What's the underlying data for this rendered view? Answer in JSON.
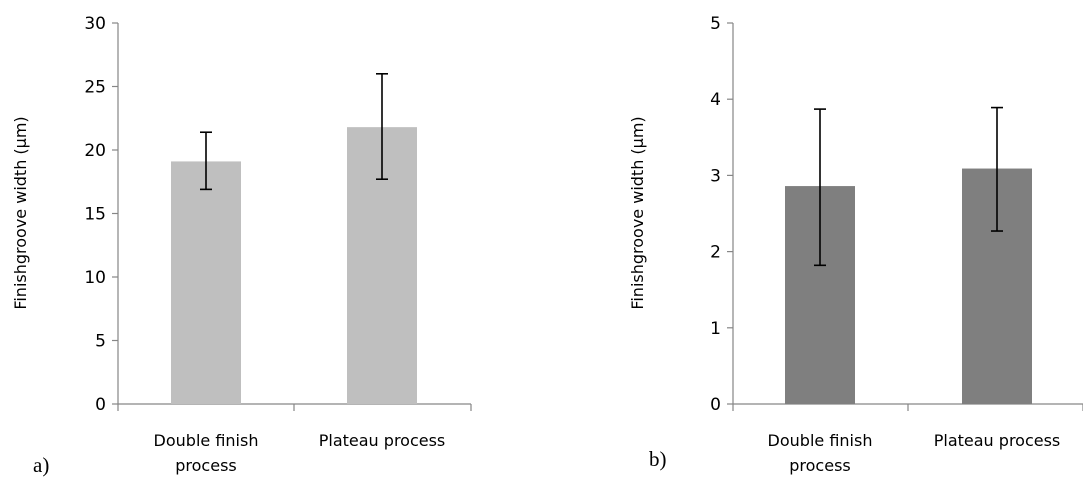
{
  "chart_data": [
    {
      "type": "bar",
      "panel_label": "a)",
      "ylabel": "Finishgroove width (μm)",
      "categories": [
        [
          "Double finish",
          "process"
        ],
        [
          "Plateau process"
        ]
      ],
      "values": [
        19.1,
        21.8
      ],
      "error_low": [
        16.9,
        17.7
      ],
      "error_high": [
        21.4,
        26.0
      ],
      "ylim": [
        0,
        30
      ],
      "yticks": [
        "0",
        "5",
        "10",
        "15",
        "20",
        "25",
        "30"
      ],
      "bar_color": "#bfbfbf",
      "grid": false
    },
    {
      "type": "bar",
      "panel_label": "b)",
      "ylabel": "Finishgroove width (μm)",
      "categories": [
        [
          "Double finish",
          "process"
        ],
        [
          "Plateau process"
        ]
      ],
      "values": [
        2.86,
        3.09
      ],
      "error_low": [
        1.82,
        2.27
      ],
      "error_high": [
        3.87,
        3.89
      ],
      "ylim": [
        0,
        5
      ],
      "yticks": [
        "0",
        "1",
        "2",
        "3",
        "4",
        "5"
      ],
      "bar_color": "#7f7f7f",
      "grid": false
    }
  ]
}
